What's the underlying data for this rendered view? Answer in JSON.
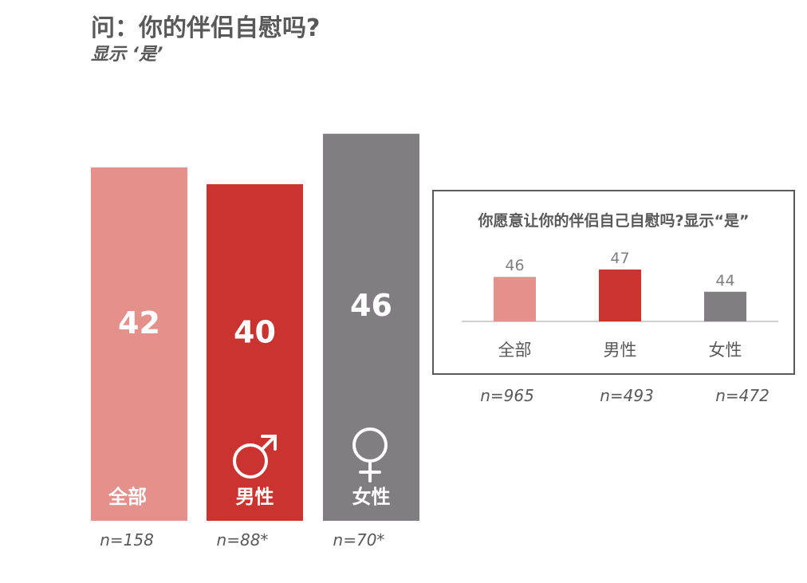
{
  "title": "问：你的伴侣自慰吗?",
  "subtitle": "显示 ‘是’",
  "chart_data": [
    {
      "type": "bar",
      "title": "问：你的伴侣自慰吗?",
      "subtitle": "显示 ‘是’",
      "ylim": [
        0,
        60
      ],
      "grid": false,
      "categories": [
        "全部",
        "男性",
        "女性"
      ],
      "values": [
        42,
        40,
        46
      ],
      "sample_sizes": [
        "n=158",
        "n=88*",
        "n=70*"
      ],
      "colors": [
        "#E4908B",
        "#CB3330",
        "#807E80"
      ],
      "icons": [
        "",
        "male-symbol-icon",
        "female-symbol-icon"
      ]
    },
    {
      "type": "bar",
      "title": "你愿意让你的伴侣自己自慰吗?显示“是”",
      "ylim": [
        40,
        50
      ],
      "grid": false,
      "categories": [
        "全部",
        "男性",
        "女性"
      ],
      "values": [
        46,
        47,
        44
      ],
      "sample_sizes": [
        "n=965",
        "n=493",
        "n=472"
      ],
      "colors": [
        "#E4908B",
        "#CB3330",
        "#807E80"
      ]
    }
  ]
}
